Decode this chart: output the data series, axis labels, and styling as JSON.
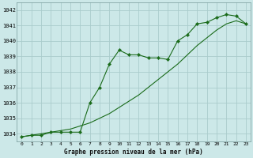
{
  "title": "Graphe pression niveau de la mer (hPa)",
  "bg_color": "#cce8e8",
  "grid_color": "#aacccc",
  "line_color": "#1a6b1a",
  "marker_color": "#1a6b1a",
  "xlim": [
    -0.5,
    23.5
  ],
  "ylim": [
    1033.5,
    1042.5
  ],
  "yticks": [
    1034,
    1035,
    1036,
    1037,
    1038,
    1039,
    1040,
    1041,
    1042
  ],
  "xticks": [
    0,
    1,
    2,
    3,
    4,
    5,
    6,
    7,
    8,
    9,
    10,
    11,
    12,
    13,
    14,
    15,
    16,
    17,
    18,
    19,
    20,
    21,
    22,
    23
  ],
  "series_marked_x": [
    0,
    1,
    2,
    3,
    4,
    5,
    6,
    7,
    8,
    9,
    10,
    11,
    12,
    13,
    14,
    15,
    16,
    17,
    18,
    19,
    20,
    21,
    22,
    23
  ],
  "series_marked_y": [
    1033.8,
    1033.9,
    1033.9,
    1034.1,
    1034.1,
    1034.1,
    1034.1,
    1036.0,
    1037.0,
    1038.5,
    1039.4,
    1039.1,
    1039.1,
    1038.9,
    1038.9,
    1038.8,
    1040.0,
    1040.4,
    1041.1,
    1041.2,
    1041.5,
    1041.7,
    1041.6,
    1041.1
  ],
  "series_smooth_x": [
    0,
    1,
    2,
    3,
    4,
    5,
    6,
    7,
    8,
    9,
    10,
    11,
    12,
    13,
    14,
    15,
    16,
    17,
    18,
    19,
    20,
    21,
    22,
    23
  ],
  "series_smooth_y": [
    1033.8,
    1033.9,
    1034.0,
    1034.1,
    1034.2,
    1034.3,
    1034.5,
    1034.7,
    1035.0,
    1035.3,
    1035.7,
    1036.1,
    1036.5,
    1037.0,
    1037.5,
    1038.0,
    1038.5,
    1039.1,
    1039.7,
    1040.2,
    1040.7,
    1041.1,
    1041.3,
    1041.1
  ]
}
